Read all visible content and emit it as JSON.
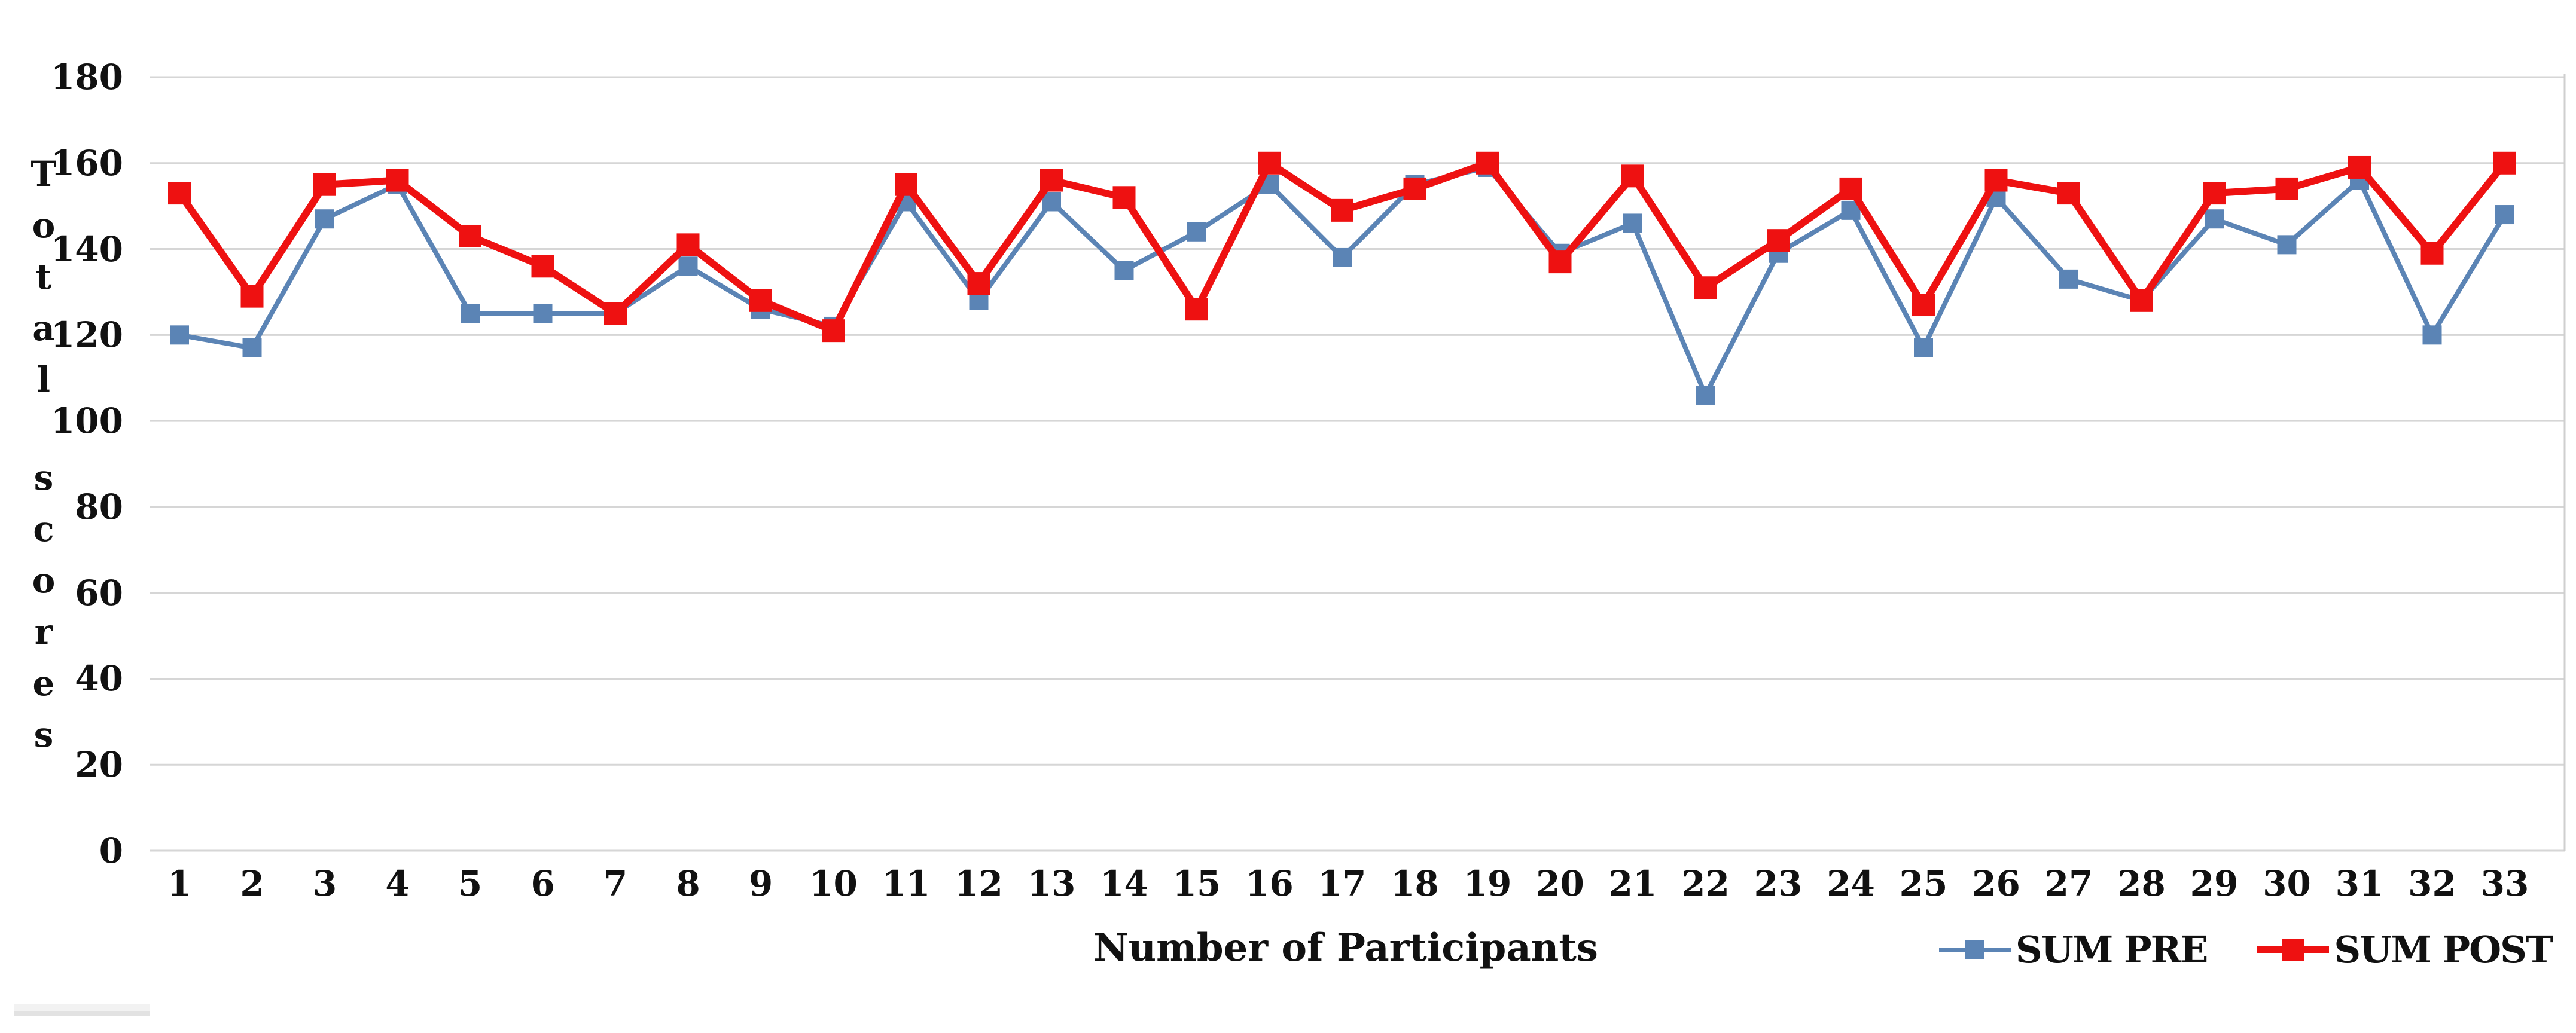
{
  "chart_data": {
    "type": "line",
    "title": "",
    "xlabel": "Number of Participants",
    "ylabel": "Total scores",
    "x": [
      1,
      2,
      3,
      4,
      5,
      6,
      7,
      8,
      9,
      10,
      11,
      12,
      13,
      14,
      15,
      16,
      17,
      18,
      19,
      20,
      21,
      22,
      23,
      24,
      25,
      26,
      27,
      28,
      29,
      30,
      31,
      32,
      33
    ],
    "series": [
      {
        "name": "SUM PRE",
        "color": "#5b84b5",
        "marker": "square",
        "marker_size": 32,
        "line_width": 8,
        "values": [
          120,
          117,
          147,
          155,
          125,
          125,
          125,
          136,
          126,
          122,
          151,
          128,
          151,
          135,
          144,
          155,
          138,
          155,
          159,
          139,
          146,
          106,
          139,
          149,
          117,
          152,
          133,
          128,
          147,
          141,
          156,
          120,
          148
        ]
      },
      {
        "name": "SUM POST",
        "color": "#ee1111",
        "marker": "square",
        "marker_size": 38,
        "line_width": 12,
        "values": [
          153,
          129,
          155,
          156,
          143,
          136,
          125,
          141,
          128,
          121,
          155,
          132,
          156,
          152,
          126,
          160,
          149,
          154,
          160,
          137,
          157,
          131,
          142,
          154,
          127,
          156,
          153,
          128,
          153,
          154,
          159,
          139,
          160
        ]
      }
    ],
    "ylim": [
      0,
      180
    ],
    "y_ticks": [
      180,
      160,
      140,
      120,
      100,
      80,
      60,
      40,
      20,
      0
    ],
    "grid": "horizontal",
    "gridline_color": "#d6d6d6",
    "plot_right_border_color": "#cfcfcf",
    "legend_position": "bottom-right",
    "axis_text_color": "#111111"
  }
}
